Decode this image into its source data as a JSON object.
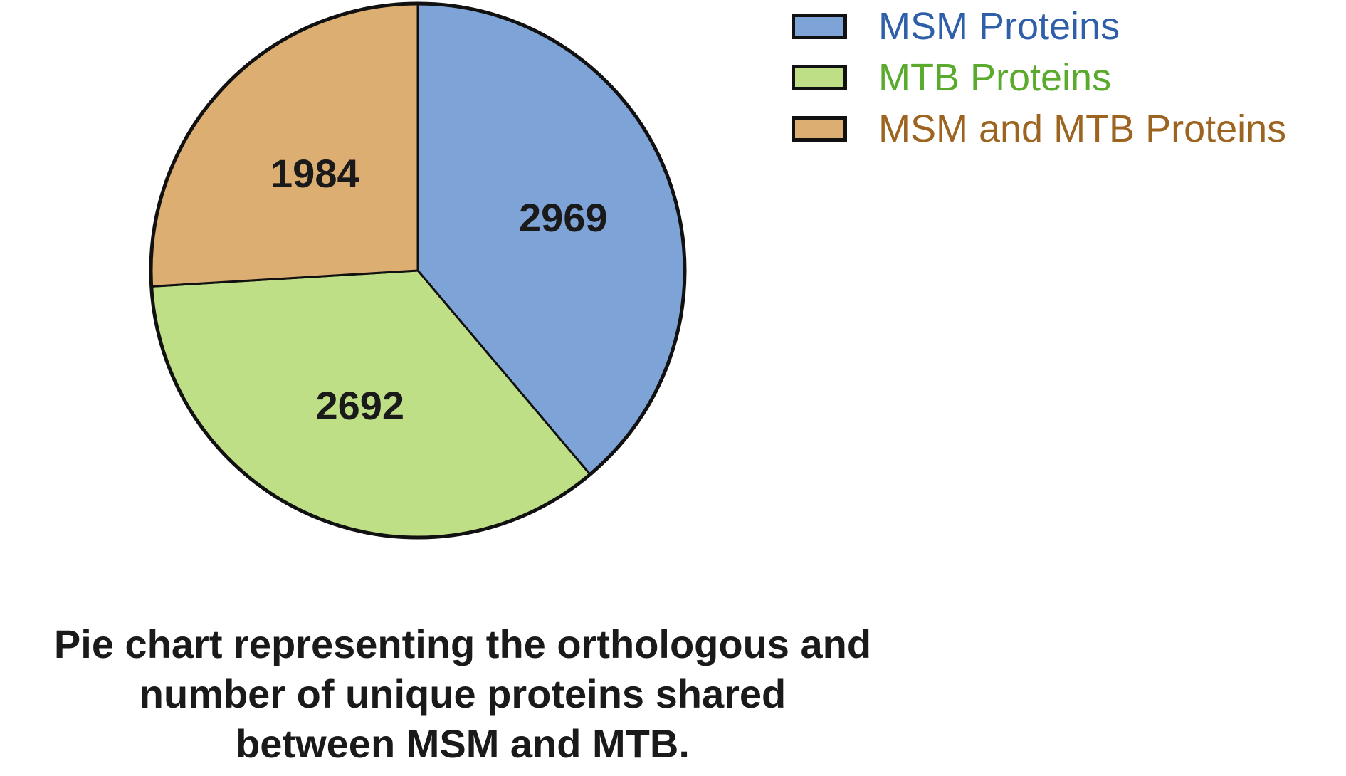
{
  "chart_data": {
    "type": "pie",
    "categories": [
      "MSM Proteins",
      "MTB Proteins",
      "MSM and MTB Proteins"
    ],
    "values": [
      2969,
      2692,
      1984
    ],
    "data_labels": [
      "2969",
      "2692",
      "1984"
    ],
    "colors": [
      "#7EA3D6",
      "#BFDF87",
      "#DDAE72"
    ],
    "legend_text_colors": [
      "#2E5FA8",
      "#5AAA2E",
      "#9C6420"
    ],
    "start_angle_deg": 0,
    "direction": "clockwise",
    "legend_position": "top-right",
    "title": ""
  },
  "caption": {
    "lines": [
      "Pie chart representing the orthologous and",
      "number of unique proteins shared",
      "between MSM and MTB."
    ]
  }
}
